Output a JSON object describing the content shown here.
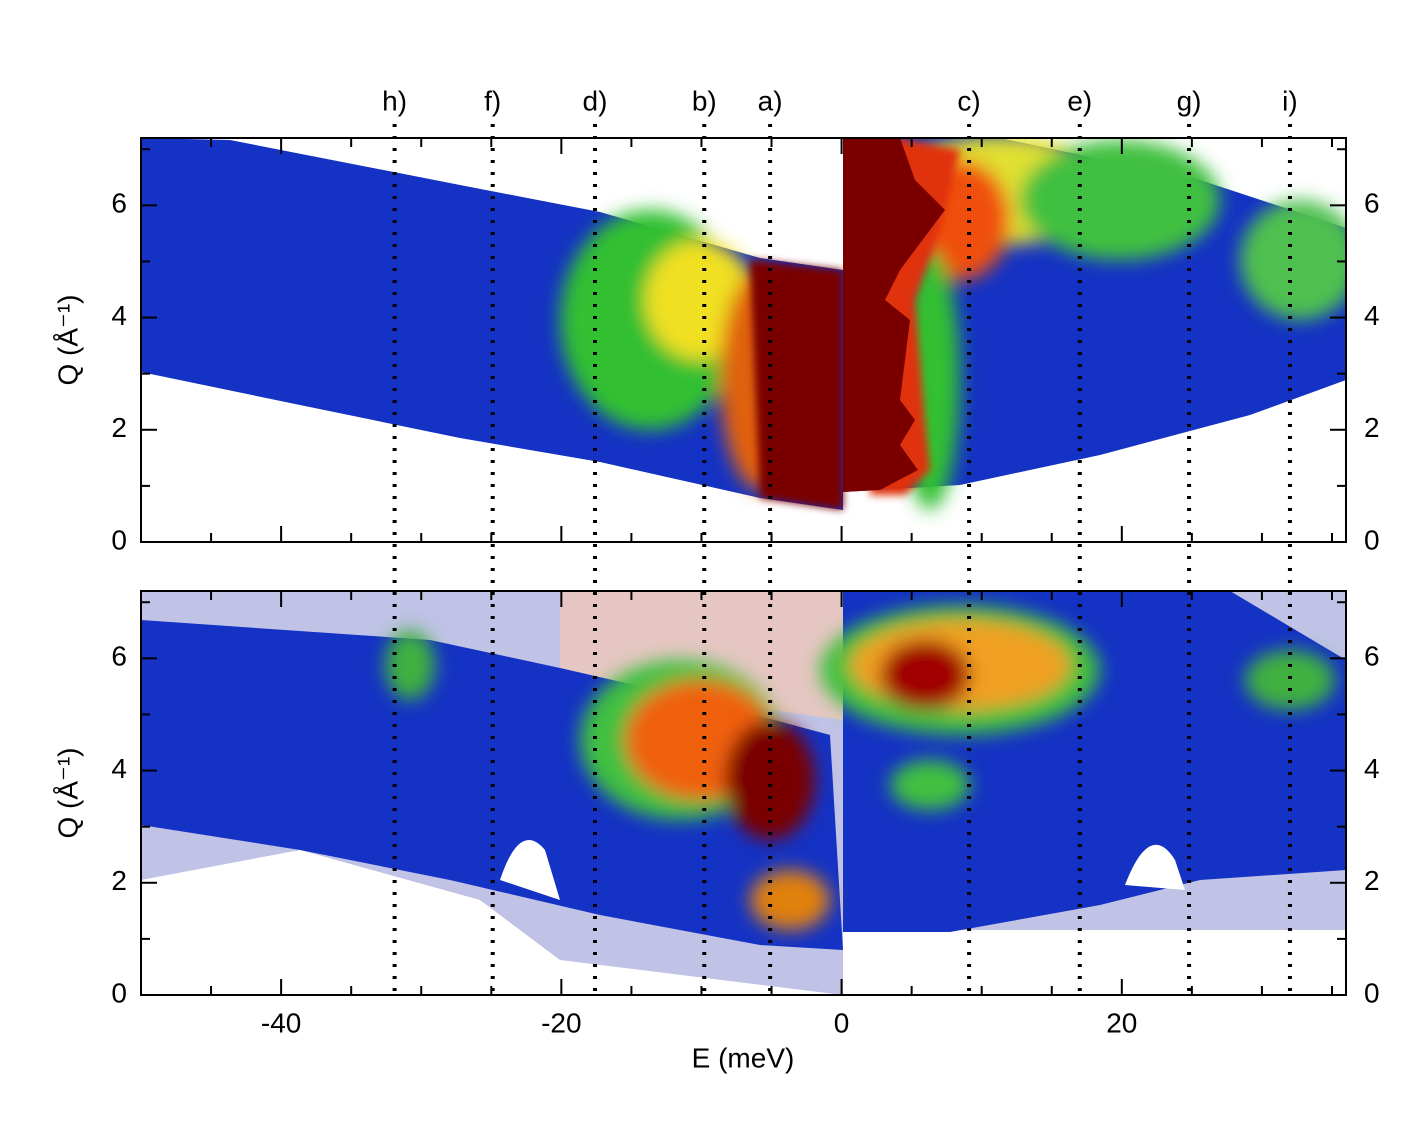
{
  "chart_data": {
    "type": "heatmap",
    "xlabel": "E (meV)",
    "ylabel": "Q (Å⁻¹)",
    "xlim": [
      -50,
      36
    ],
    "xticks": [
      -40,
      -20,
      0,
      20
    ],
    "xminor": [
      -45,
      -35,
      -30,
      -25,
      -15,
      -10,
      -5,
      5,
      10,
      15,
      25,
      30,
      35
    ],
    "ylim": [
      0,
      7.2
    ],
    "yticks": [
      0,
      2,
      4,
      6
    ],
    "yminor": [
      1,
      3,
      5,
      7
    ],
    "markers": [
      {
        "label": "h)",
        "E": -31.9
      },
      {
        "label": "f)",
        "E": -24.9
      },
      {
        "label": "d)",
        "E": -17.6
      },
      {
        "label": "b)",
        "E": -9.8
      },
      {
        "label": "a)",
        "E": -5.1
      },
      {
        "label": "c)",
        "E": 9.1
      },
      {
        "label": "e)",
        "E": 17.0
      },
      {
        "label": "g)",
        "E": 24.8
      },
      {
        "label": "i)",
        "E": 32.0
      }
    ]
  }
}
